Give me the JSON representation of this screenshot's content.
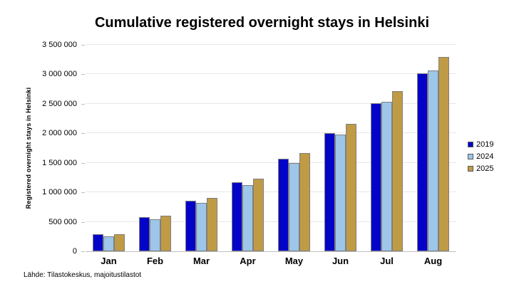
{
  "page": {
    "source": "Lähde: Tilastokeskus, majoitustilastot"
  },
  "chart_data": {
    "type": "bar",
    "title": "Cumulative registered overnight stays in Helsinki",
    "xlabel": "",
    "ylabel": "Registered overnight stays in Helsinki",
    "categories": [
      "Jan",
      "Feb",
      "Mar",
      "Apr",
      "May",
      "Jun",
      "Jul",
      "Aug"
    ],
    "series": [
      {
        "name": "2019",
        "color": "#0404c8",
        "values": [
          285000,
          575000,
          860000,
          1175000,
          1565000,
          2005000,
          2510000,
          3015000
        ]
      },
      {
        "name": "2024",
        "color": "#9dc6e8",
        "values": [
          255000,
          540000,
          815000,
          1125000,
          1495000,
          1985000,
          2530000,
          3060000
        ]
      },
      {
        "name": "2025",
        "color": "#bf9b45",
        "values": [
          290000,
          605000,
          910000,
          1235000,
          1660000,
          2160000,
          2720000,
          3290000
        ]
      }
    ],
    "ylim": [
      0,
      3500000
    ],
    "ytick_step": 500000,
    "ytick_labels": [
      "0",
      "500 000",
      "1 000 000",
      "1 500 000",
      "2 000 000",
      "2 500 000",
      "3 000 000",
      "3 500 000"
    ],
    "grid": "horizontal",
    "legend_position": "right"
  }
}
